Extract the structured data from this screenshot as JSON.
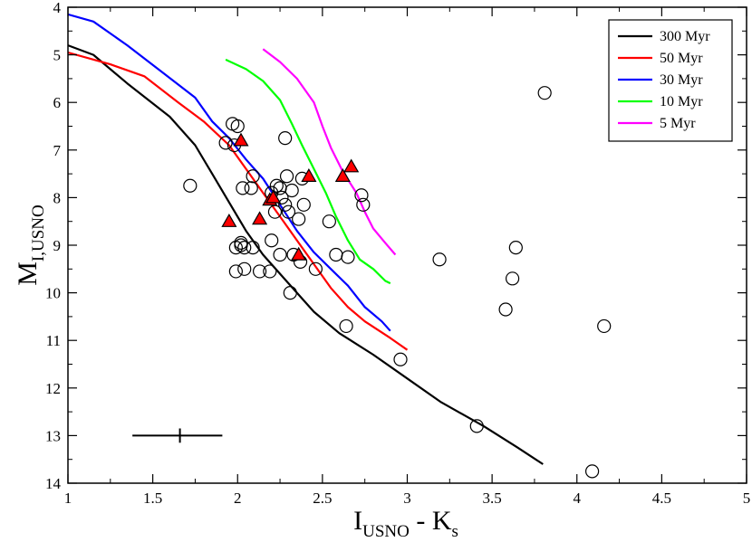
{
  "chart_data": {
    "type": "scatter",
    "title": "",
    "xlabel": {
      "main": "I",
      "sub": "USNO",
      "mid": " - K",
      "sub2": "s"
    },
    "ylabel": {
      "main": "M",
      "sub": "I,USNO"
    },
    "xlim": [
      1,
      5
    ],
    "ylim": [
      14,
      4
    ],
    "y_inverted": true,
    "grid": false,
    "legend_position": "top-right",
    "x_ticks": [
      1,
      1.5,
      2,
      2.5,
      3,
      3.5,
      4,
      4.5,
      5
    ],
    "x_tick_labels": [
      "1",
      "1.5",
      "2",
      "2.5",
      "3",
      "3.5",
      "4",
      "4.5",
      "5"
    ],
    "y_ticks": [
      4,
      5,
      6,
      7,
      8,
      9,
      10,
      11,
      12,
      13,
      14
    ],
    "y_tick_labels": [
      "4",
      "5",
      "6",
      "7",
      "8",
      "9",
      "10",
      "11",
      "12",
      "13",
      "14"
    ],
    "isochrones": [
      {
        "name": "300 Myr",
        "label": "300 Myr",
        "color": "#000000",
        "points": [
          [
            1.0,
            4.8
          ],
          [
            1.15,
            5.0
          ],
          [
            1.35,
            5.6
          ],
          [
            1.6,
            6.3
          ],
          [
            1.75,
            6.9
          ],
          [
            1.85,
            7.5
          ],
          [
            1.95,
            8.1
          ],
          [
            2.05,
            8.7
          ],
          [
            2.15,
            9.2
          ],
          [
            2.3,
            9.8
          ],
          [
            2.45,
            10.4
          ],
          [
            2.6,
            10.85
          ],
          [
            2.8,
            11.3
          ],
          [
            3.0,
            11.8
          ],
          [
            3.2,
            12.3
          ],
          [
            3.45,
            12.8
          ],
          [
            3.65,
            13.25
          ],
          [
            3.8,
            13.6
          ]
        ]
      },
      {
        "name": "50 Myr",
        "label": "50 Myr",
        "color": "#ff0000",
        "points": [
          [
            1.0,
            4.95
          ],
          [
            1.25,
            5.2
          ],
          [
            1.45,
            5.45
          ],
          [
            1.65,
            6.0
          ],
          [
            1.8,
            6.4
          ],
          [
            1.95,
            6.9
          ],
          [
            2.05,
            7.4
          ],
          [
            2.15,
            7.9
          ],
          [
            2.25,
            8.4
          ],
          [
            2.35,
            8.9
          ],
          [
            2.45,
            9.4
          ],
          [
            2.55,
            9.9
          ],
          [
            2.65,
            10.3
          ],
          [
            2.75,
            10.6
          ],
          [
            2.9,
            10.95
          ],
          [
            3.0,
            11.2
          ]
        ]
      },
      {
        "name": "30 Myr",
        "label": "30 Myr",
        "color": "#0000ff",
        "points": [
          [
            1.0,
            4.15
          ],
          [
            1.15,
            4.3
          ],
          [
            1.35,
            4.8
          ],
          [
            1.55,
            5.35
          ],
          [
            1.75,
            5.9
          ],
          [
            1.85,
            6.4
          ],
          [
            1.95,
            6.75
          ],
          [
            2.05,
            7.2
          ],
          [
            2.15,
            7.6
          ],
          [
            2.25,
            8.15
          ],
          [
            2.35,
            8.7
          ],
          [
            2.45,
            9.15
          ],
          [
            2.55,
            9.5
          ],
          [
            2.65,
            9.85
          ],
          [
            2.75,
            10.3
          ],
          [
            2.85,
            10.6
          ],
          [
            2.9,
            10.8
          ]
        ]
      },
      {
        "name": "10 Myr",
        "label": "10 Myr",
        "color": "#00ff00",
        "points": [
          [
            1.93,
            5.1
          ],
          [
            2.05,
            5.3
          ],
          [
            2.15,
            5.55
          ],
          [
            2.25,
            5.95
          ],
          [
            2.32,
            6.45
          ],
          [
            2.38,
            6.9
          ],
          [
            2.45,
            7.4
          ],
          [
            2.52,
            7.9
          ],
          [
            2.58,
            8.4
          ],
          [
            2.65,
            8.9
          ],
          [
            2.72,
            9.3
          ],
          [
            2.8,
            9.5
          ],
          [
            2.87,
            9.75
          ],
          [
            2.9,
            9.8
          ]
        ]
      },
      {
        "name": "5 Myr",
        "label": "5 Myr",
        "color": "#ff00ff",
        "points": [
          [
            2.15,
            4.88
          ],
          [
            2.25,
            5.15
          ],
          [
            2.35,
            5.5
          ],
          [
            2.45,
            6.0
          ],
          [
            2.5,
            6.5
          ],
          [
            2.55,
            6.95
          ],
          [
            2.62,
            7.45
          ],
          [
            2.7,
            7.9
          ],
          [
            2.75,
            8.3
          ],
          [
            2.8,
            8.65
          ],
          [
            2.87,
            8.95
          ],
          [
            2.93,
            9.2
          ]
        ]
      }
    ],
    "open_circles": [
      [
        1.72,
        7.75
      ],
      [
        1.93,
        6.85
      ],
      [
        1.97,
        6.45
      ],
      [
        1.98,
        6.9
      ],
      [
        2.0,
        6.5
      ],
      [
        2.03,
        7.8
      ],
      [
        2.08,
        7.8
      ],
      [
        2.09,
        7.55
      ],
      [
        1.99,
        9.05
      ],
      [
        2.02,
        9.0
      ],
      [
        2.02,
        8.95
      ],
      [
        2.04,
        9.05
      ],
      [
        2.09,
        9.05
      ],
      [
        1.99,
        9.55
      ],
      [
        2.04,
        9.5
      ],
      [
        2.13,
        9.55
      ],
      [
        2.19,
        9.55
      ],
      [
        2.2,
        7.9
      ],
      [
        2.22,
        8.3
      ],
      [
        2.23,
        7.75
      ],
      [
        2.25,
        7.8
      ],
      [
        2.26,
        8.0
      ],
      [
        2.28,
        8.15
      ],
      [
        2.29,
        7.55
      ],
      [
        2.3,
        8.3
      ],
      [
        2.32,
        7.85
      ],
      [
        2.28,
        6.75
      ],
      [
        2.36,
        8.45
      ],
      [
        2.38,
        7.6
      ],
      [
        2.39,
        8.15
      ],
      [
        2.2,
        8.9
      ],
      [
        2.25,
        9.2
      ],
      [
        2.33,
        9.2
      ],
      [
        2.37,
        9.35
      ],
      [
        2.46,
        9.5
      ],
      [
        2.31,
        10.0
      ],
      [
        2.54,
        8.5
      ],
      [
        2.58,
        9.2
      ],
      [
        2.65,
        9.25
      ],
      [
        2.64,
        10.7
      ],
      [
        2.73,
        7.95
      ],
      [
        2.74,
        8.15
      ],
      [
        2.96,
        11.4
      ],
      [
        3.19,
        9.3
      ],
      [
        3.41,
        12.8
      ],
      [
        3.58,
        10.35
      ],
      [
        3.62,
        9.7
      ],
      [
        3.64,
        9.05
      ],
      [
        3.81,
        5.8
      ],
      [
        4.09,
        13.75
      ],
      [
        4.16,
        10.7
      ]
    ],
    "filled_triangles": [
      [
        1.95,
        8.5
      ],
      [
        2.02,
        6.8
      ],
      [
        2.13,
        8.45
      ],
      [
        2.19,
        8.05
      ],
      [
        2.21,
        8.0
      ],
      [
        2.36,
        9.2
      ],
      [
        2.42,
        7.55
      ],
      [
        2.62,
        7.55
      ],
      [
        2.67,
        7.35
      ]
    ],
    "triangle_color": "#ff0000",
    "error_bar": {
      "center": [
        1.66,
        13.0
      ],
      "x_error": [
        1.38,
        1.91
      ],
      "y_error": [
        12.85,
        13.15
      ]
    }
  }
}
